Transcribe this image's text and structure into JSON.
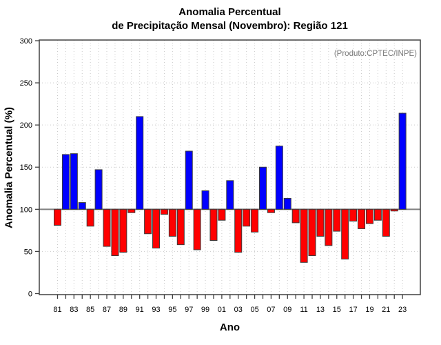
{
  "chart": {
    "title_line1": "Anomalia Percentual",
    "title_line2": "de Precipitação Mensal (Novembro): Região 121",
    "annotation": "(Produto:CPTEC/INPE)",
    "xlabel": "Ano",
    "ylabel": "Anomalia Percentual (%)"
  },
  "chart_data": {
    "type": "bar",
    "title": "Anomalia Percentual de Precipitação Mensal (Novembro): Região 121",
    "annotation": "(Produto:CPTEC/INPE)",
    "xlabel": "Ano",
    "ylabel": "Anomalia Percentual (%)",
    "ylim": [
      0,
      300
    ],
    "y_ticks": [
      0,
      50,
      100,
      150,
      200,
      250,
      300
    ],
    "baseline": 100,
    "grid": true,
    "legend": "none",
    "x_ticklabels": [
      "81",
      "83",
      "85",
      "87",
      "89",
      "91",
      "93",
      "95",
      "97",
      "99",
      "01",
      "03",
      "05",
      "07",
      "09",
      "11",
      "13",
      "15",
      "17",
      "19",
      "21",
      "23"
    ],
    "categories": [
      1981,
      1982,
      1983,
      1984,
      1985,
      1986,
      1987,
      1988,
      1989,
      1990,
      1991,
      1992,
      1993,
      1994,
      1995,
      1996,
      1997,
      1998,
      1999,
      2000,
      2001,
      2002,
      2003,
      2004,
      2005,
      2006,
      2007,
      2008,
      2009,
      2010,
      2011,
      2012,
      2013,
      2014,
      2015,
      2016,
      2017,
      2018,
      2019,
      2020,
      2021,
      2022,
      2023
    ],
    "values": [
      81,
      165,
      166,
      108,
      80,
      147,
      56,
      45,
      49,
      96,
      210,
      71,
      54,
      94,
      68,
      58,
      169,
      52,
      122,
      63,
      87,
      134,
      49,
      80,
      73,
      150,
      96,
      175,
      113,
      84,
      37,
      45,
      68,
      57,
      74,
      41,
      86,
      77,
      83,
      87,
      68,
      98,
      214
    ],
    "colors": {
      "above_baseline": "#0000ff",
      "below_baseline": "#ff0000",
      "bar_border": "#3c3c3c",
      "baseline_line": "#808080",
      "box": "#404040",
      "grid": "#c9c9c9",
      "tick": "#404040",
      "tick_label": "#000000",
      "annotation_text": "#7b7b7b"
    }
  }
}
